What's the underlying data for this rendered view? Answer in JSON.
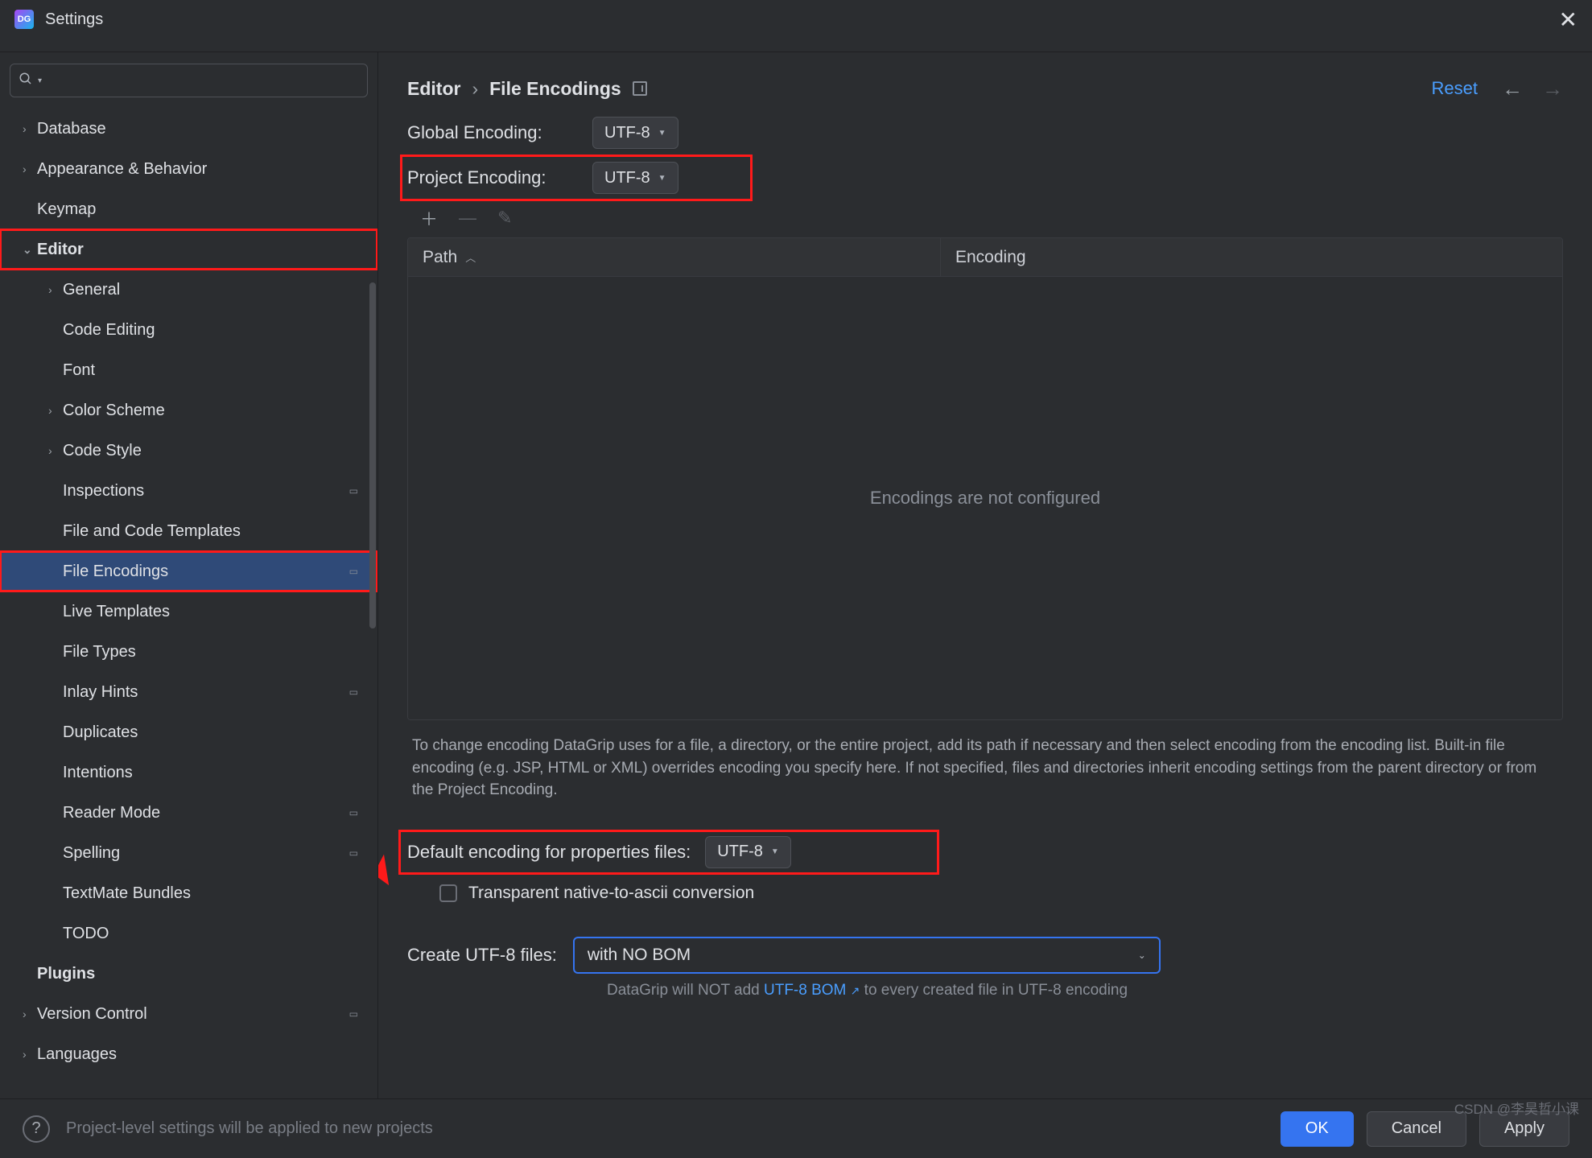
{
  "window": {
    "title": "Settings"
  },
  "colors": {
    "accent": "#3574f0",
    "link": "#4a9eff",
    "annotation": "#ff1a1a",
    "bg": "#2b2d30",
    "panel": "#393b40",
    "text": "#dfe1e5",
    "muted": "#8a8f98"
  },
  "sidebar": {
    "search_placeholder": "",
    "items": [
      {
        "label": "Database",
        "level": 0,
        "arrow": ">",
        "bold": false
      },
      {
        "label": "Appearance & Behavior",
        "level": 0,
        "arrow": ">",
        "bold": false
      },
      {
        "label": "Keymap",
        "level": 0,
        "arrow": "",
        "bold": false
      },
      {
        "label": "Editor",
        "level": 0,
        "arrow": "v",
        "bold": true,
        "boxed": true
      },
      {
        "label": "General",
        "level": 1,
        "arrow": ">"
      },
      {
        "label": "Code Editing",
        "level": 1,
        "arrow": ""
      },
      {
        "label": "Font",
        "level": 1,
        "arrow": ""
      },
      {
        "label": "Color Scheme",
        "level": 1,
        "arrow": ">"
      },
      {
        "label": "Code Style",
        "level": 1,
        "arrow": ">"
      },
      {
        "label": "Inspections",
        "level": 1,
        "arrow": "",
        "gear": true
      },
      {
        "label": "File and Code Templates",
        "level": 1,
        "arrow": ""
      },
      {
        "label": "File Encodings",
        "level": 1,
        "arrow": "",
        "gear": true,
        "selected": true,
        "boxed": true
      },
      {
        "label": "Live Templates",
        "level": 1,
        "arrow": ""
      },
      {
        "label": "File Types",
        "level": 1,
        "arrow": ""
      },
      {
        "label": "Inlay Hints",
        "level": 1,
        "arrow": "",
        "gear": true
      },
      {
        "label": "Duplicates",
        "level": 1,
        "arrow": ""
      },
      {
        "label": "Intentions",
        "level": 1,
        "arrow": ""
      },
      {
        "label": "Reader Mode",
        "level": 1,
        "arrow": "",
        "gear": true
      },
      {
        "label": "Spelling",
        "level": 1,
        "arrow": "",
        "gear": true
      },
      {
        "label": "TextMate Bundles",
        "level": 1,
        "arrow": ""
      },
      {
        "label": "TODO",
        "level": 1,
        "arrow": ""
      },
      {
        "label": "Plugins",
        "level": 0,
        "arrow": "",
        "bold": true
      },
      {
        "label": "Version Control",
        "level": 0,
        "arrow": ">",
        "bold": false,
        "gear": true
      },
      {
        "label": "Languages",
        "level": 0,
        "arrow": ">",
        "bold": false
      }
    ]
  },
  "breadcrumb": {
    "root": "Editor",
    "leaf": "File Encodings"
  },
  "actions": {
    "reset": "Reset"
  },
  "form": {
    "global_encoding_label": "Global Encoding:",
    "global_encoding_value": "UTF-8",
    "project_encoding_label": "Project Encoding:",
    "project_encoding_value": "UTF-8",
    "props_encoding_label": "Default encoding for properties files:",
    "props_encoding_value": "UTF-8",
    "transparent_label": "Transparent native-to-ascii conversion",
    "transparent_checked": false,
    "create_label": "Create UTF-8 files:",
    "create_value": "with NO BOM",
    "bom_prefix": "DataGrip will NOT add ",
    "bom_link": "UTF-8 BOM",
    "bom_suffix": " to every created file in UTF-8 encoding"
  },
  "table": {
    "col1": "Path",
    "col2": "Encoding",
    "empty_text": "Encodings are not configured"
  },
  "help_text": "To change encoding DataGrip uses for a file, a directory, or the entire project, add its path if necessary and then select encoding from the encoding list. Built-in file encoding (e.g. JSP, HTML or XML) overrides encoding you specify here. If not specified, files and directories inherit encoding settings from the parent directory or from the Project Encoding.",
  "footer": {
    "note": "Project-level settings will be applied to new projects",
    "ok": "OK",
    "cancel": "Cancel",
    "apply": "Apply"
  },
  "watermark": "CSDN @李昊哲小课"
}
